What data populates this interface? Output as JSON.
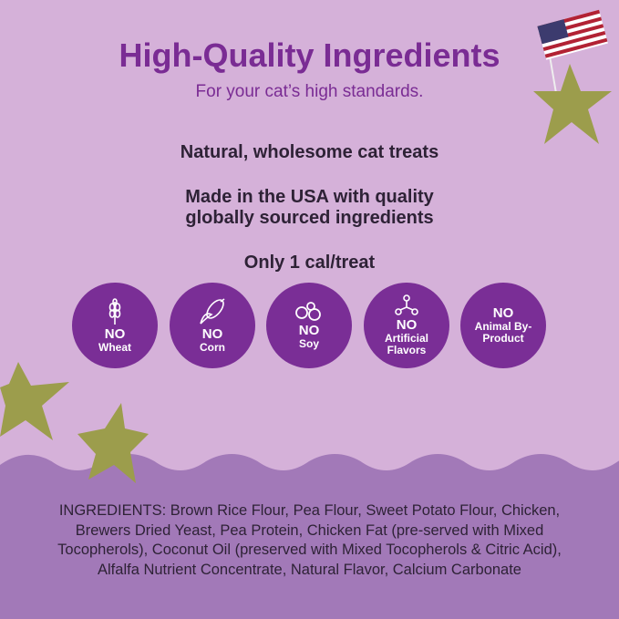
{
  "header": {
    "title": "High-Quality Ingredients",
    "subtitle": "For your cat’s high standards."
  },
  "claims": [
    "Natural, wholesome cat treats",
    "Made in the USA with quality",
    "globally sourced ingredients",
    "Only 1 cal/treat"
  ],
  "badges": [
    {
      "no": "NO",
      "label": "Wheat",
      "icon": "wheat-icon"
    },
    {
      "no": "NO",
      "label": "Corn",
      "icon": "corn-icon"
    },
    {
      "no": "NO",
      "label": "Soy",
      "icon": "soybean-icon"
    },
    {
      "no": "NO",
      "label": "Artificial Flavors",
      "icon": "molecule-icon"
    },
    {
      "no": "NO",
      "label": "Animal By-Product"
    }
  ],
  "ingredients": "INGREDIENTS: Brown Rice Flour, Pea Flour, Sweet Potato Flour, Chicken, Brewers Dried Yeast, Pea Protein, Chicken Fat (pre-served with Mixed Tocopherols), Coconut Oil (preserved with Mixed Tocopherols & Citric Acid), Alfalfa Nutrient Concentrate, Natural Flavor, Calcium Carbonate",
  "colors": {
    "background": "#d5b1d9",
    "accent": "#7a2e96",
    "bottom_band": "#a279b8",
    "treat": "#9c9d4c"
  }
}
